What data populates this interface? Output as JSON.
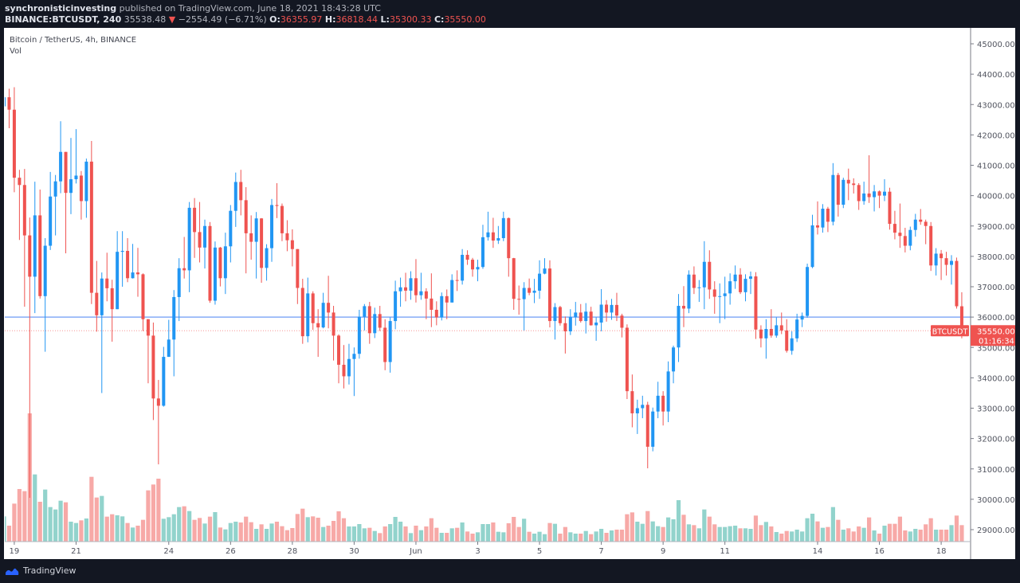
{
  "header": {
    "author": "synchronisticinvesting",
    "published": "published on TradingView.com, June 18, 2021 18:43:28 UTC",
    "symbol": "BINANCE:BTCUSDT, 240",
    "last": "35538.48",
    "change": "−2554.49 (−6.71%)",
    "o_label": "O:",
    "o": "36355.97",
    "h_label": "H:",
    "h": "36818.44",
    "l_label": "L:",
    "l": "35300.33",
    "c_label": "C:",
    "c": "35550.00"
  },
  "legend": {
    "title": "Bitcoin / TetherUS, 4h, BINANCE",
    "vol": "Vol"
  },
  "price_tag": {
    "symbol": "BTCUSDT",
    "price": "35550.00",
    "countdown": "01:16:34"
  },
  "footer": {
    "brand": "TradingView"
  },
  "colors": {
    "up": "#2196f3",
    "down": "#ef5350",
    "vol_up": "#92d3cc",
    "vol_down": "#f7a9a7",
    "hline": "#6e9cf5",
    "bg": "#131722"
  },
  "chart_data": {
    "type": "candlestick",
    "title": "Bitcoin / TetherUS, 4h, BINANCE",
    "ylim": [
      28500,
      45500
    ],
    "yticks": [
      29000,
      30000,
      31000,
      32000,
      33000,
      34000,
      35000,
      36000,
      37000,
      38000,
      39000,
      40000,
      41000,
      42000,
      43000,
      44000,
      45000
    ],
    "ytick_labels": [
      "29000.00",
      "30000.00",
      "31000.00",
      "32000.00",
      "33000.00",
      "34000.00",
      "35000.00",
      "36000.00",
      "37000.00",
      "38000.00",
      "39000.00",
      "40000.00",
      "41000.00",
      "42000.00",
      "43000.00",
      "44000.00",
      "45000.00"
    ],
    "xticks": [
      {
        "i": 2,
        "label": "19"
      },
      {
        "i": 14,
        "label": "21"
      },
      {
        "i": 32,
        "label": "24"
      },
      {
        "i": 44,
        "label": "26"
      },
      {
        "i": 56,
        "label": "28"
      },
      {
        "i": 68,
        "label": "30"
      },
      {
        "i": 80,
        "label": "Jun"
      },
      {
        "i": 92,
        "label": "3"
      },
      {
        "i": 104,
        "label": "5"
      },
      {
        "i": 116,
        "label": "7"
      },
      {
        "i": 128,
        "label": "9"
      },
      {
        "i": 140,
        "label": "11"
      },
      {
        "i": 158,
        "label": "14"
      },
      {
        "i": 170,
        "label": "16"
      },
      {
        "i": 182,
        "label": "18"
      }
    ],
    "horizontal_line": 36000,
    "last_price": 35550.0,
    "ohlc": [
      [
        42940,
        43300,
        42900,
        43240
      ],
      [
        43240,
        43520,
        42220,
        42830
      ],
      [
        42830,
        43570,
        40110,
        40590
      ],
      [
        40590,
        40850,
        38540,
        40350
      ],
      [
        40350,
        40880,
        36340,
        38690
      ],
      [
        38690,
        39280,
        30050,
        37330
      ],
      [
        37330,
        40460,
        36130,
        39350
      ],
      [
        39350,
        40200,
        36610,
        36690
      ],
      [
        36690,
        38600,
        34860,
        38350
      ],
      [
        38350,
        40780,
        38210,
        39970
      ],
      [
        39970,
        40680,
        38690,
        40470
      ],
      [
        40470,
        42450,
        40080,
        41440
      ],
      [
        41440,
        41440,
        38100,
        40090
      ],
      [
        40090,
        41900,
        39390,
        40540
      ],
      [
        40540,
        42190,
        40400,
        40660
      ],
      [
        40660,
        40810,
        39210,
        39820
      ],
      [
        39820,
        41220,
        39270,
        41120
      ],
      [
        41120,
        41800,
        36430,
        36800
      ],
      [
        36800,
        37850,
        35520,
        36060
      ],
      [
        36060,
        37470,
        33500,
        37270
      ],
      [
        37270,
        38120,
        36520,
        36950
      ],
      [
        36950,
        37230,
        35190,
        36260
      ],
      [
        36260,
        38830,
        36260,
        38150
      ],
      [
        38150,
        38830,
        37000,
        38180
      ],
      [
        38180,
        38600,
        37150,
        37280
      ],
      [
        37280,
        38410,
        37270,
        37470
      ],
      [
        37470,
        38280,
        36670,
        37410
      ],
      [
        37410,
        37440,
        35540,
        35930
      ],
      [
        35930,
        35930,
        33820,
        35390
      ],
      [
        35390,
        35820,
        32610,
        33320
      ],
      [
        33320,
        33930,
        31150,
        33080
      ],
      [
        33080,
        35020,
        33050,
        34690
      ],
      [
        34690,
        35910,
        34690,
        35260
      ],
      [
        35260,
        36890,
        34050,
        36660
      ],
      [
        36660,
        37940,
        35870,
        37610
      ],
      [
        37610,
        38640,
        37270,
        37540
      ],
      [
        37540,
        39790,
        36820,
        39600
      ],
      [
        39600,
        39920,
        37950,
        38800
      ],
      [
        38800,
        39790,
        37800,
        38290
      ],
      [
        38290,
        39210,
        37600,
        39000
      ],
      [
        39000,
        39130,
        36470,
        36540
      ],
      [
        36540,
        38490,
        36410,
        38290
      ],
      [
        38290,
        38310,
        37010,
        37280
      ],
      [
        37280,
        38780,
        36760,
        38330
      ],
      [
        38330,
        39690,
        37800,
        39500
      ],
      [
        39500,
        40760,
        38970,
        40450
      ],
      [
        40450,
        40850,
        39350,
        39850
      ],
      [
        39850,
        40280,
        37440,
        38760
      ],
      [
        38760,
        39350,
        37890,
        38480
      ],
      [
        38480,
        39460,
        37270,
        39250
      ],
      [
        39250,
        39260,
        37130,
        37620
      ],
      [
        37620,
        38400,
        37200,
        38270
      ],
      [
        38270,
        39890,
        37820,
        39690
      ],
      [
        39690,
        40410,
        39260,
        39660
      ],
      [
        39660,
        39740,
        38500,
        38760
      ],
      [
        38760,
        39190,
        38170,
        38530
      ],
      [
        38530,
        38890,
        37670,
        38240
      ],
      [
        38240,
        38240,
        36430,
        36960
      ],
      [
        36960,
        37260,
        35120,
        35370
      ],
      [
        35370,
        37300,
        35170,
        36780
      ],
      [
        36780,
        36850,
        35580,
        35800
      ],
      [
        35800,
        36260,
        34690,
        35660
      ],
      [
        35660,
        36800,
        35630,
        36470
      ],
      [
        36470,
        37360,
        35630,
        36150
      ],
      [
        36150,
        36370,
        34570,
        35390
      ],
      [
        35390,
        35430,
        33820,
        34430
      ],
      [
        34430,
        35080,
        33650,
        34050
      ],
      [
        34050,
        35120,
        33780,
        34620
      ],
      [
        34620,
        35000,
        33400,
        34790
      ],
      [
        34790,
        36240,
        34630,
        36010
      ],
      [
        36010,
        36430,
        35560,
        36360
      ],
      [
        36360,
        36500,
        35120,
        35470
      ],
      [
        35470,
        36310,
        35310,
        36100
      ],
      [
        36100,
        36370,
        35540,
        35650
      ],
      [
        35650,
        35930,
        34250,
        34520
      ],
      [
        34520,
        35990,
        34170,
        35870
      ],
      [
        35870,
        37200,
        35600,
        36850
      ],
      [
        36850,
        37300,
        36340,
        36980
      ],
      [
        36980,
        37460,
        36520,
        36870
      ],
      [
        36870,
        37510,
        36570,
        37280
      ],
      [
        37280,
        37910,
        36480,
        36720
      ],
      [
        36720,
        37460,
        36570,
        36850
      ],
      [
        36850,
        36950,
        35930,
        36610
      ],
      [
        36610,
        37440,
        35670,
        36240
      ],
      [
        36240,
        36520,
        35730,
        35990
      ],
      [
        35990,
        36810,
        35890,
        36690
      ],
      [
        36690,
        36910,
        35930,
        36480
      ],
      [
        36480,
        37410,
        36480,
        37220
      ],
      [
        37220,
        37540,
        36860,
        37200
      ],
      [
        37200,
        38240,
        37070,
        38050
      ],
      [
        38050,
        38200,
        37720,
        37890
      ],
      [
        37890,
        37950,
        37330,
        37570
      ],
      [
        37570,
        37890,
        37180,
        37650
      ],
      [
        37650,
        39040,
        37590,
        38630
      ],
      [
        38630,
        39470,
        38520,
        38790
      ],
      [
        38790,
        39270,
        38280,
        38520
      ],
      [
        38520,
        39000,
        38410,
        38600
      ],
      [
        38600,
        39470,
        38500,
        39260
      ],
      [
        39260,
        39280,
        37330,
        37940
      ],
      [
        37940,
        37950,
        36240,
        36600
      ],
      [
        36600,
        37040,
        36080,
        36590
      ],
      [
        36590,
        37150,
        35560,
        36960
      ],
      [
        36960,
        37270,
        36720,
        36800
      ],
      [
        36800,
        37260,
        36460,
        36870
      ],
      [
        36870,
        37870,
        36600,
        37430
      ],
      [
        37430,
        37940,
        37410,
        37600
      ],
      [
        37600,
        37870,
        35660,
        35870
      ],
      [
        35870,
        36460,
        35260,
        36330
      ],
      [
        36330,
        36370,
        35720,
        35800
      ],
      [
        35800,
        36020,
        34800,
        35530
      ],
      [
        35530,
        36260,
        35410,
        36000
      ],
      [
        36000,
        36500,
        35720,
        36150
      ],
      [
        36150,
        36430,
        35820,
        35870
      ],
      [
        35870,
        36460,
        35460,
        36180
      ],
      [
        36180,
        36340,
        35720,
        35730
      ],
      [
        35730,
        35990,
        35220,
        35820
      ],
      [
        35820,
        36920,
        35530,
        36410
      ],
      [
        36410,
        36560,
        35850,
        36150
      ],
      [
        36150,
        36600,
        35910,
        36400
      ],
      [
        36400,
        36800,
        35870,
        36050
      ],
      [
        36050,
        36110,
        35330,
        35650
      ],
      [
        35650,
        35760,
        33300,
        33560
      ],
      [
        33560,
        34110,
        32370,
        32830
      ],
      [
        32830,
        33280,
        32150,
        33000
      ],
      [
        33000,
        33410,
        32670,
        33110
      ],
      [
        33110,
        33210,
        31020,
        31730
      ],
      [
        31730,
        33020,
        31580,
        32890
      ],
      [
        32890,
        33870,
        32670,
        33410
      ],
      [
        33410,
        33560,
        32430,
        32890
      ],
      [
        32890,
        34540,
        32540,
        34210
      ],
      [
        34210,
        35060,
        33820,
        35000
      ],
      [
        35000,
        36760,
        34520,
        36370
      ],
      [
        36370,
        37020,
        35670,
        36280
      ],
      [
        36280,
        37540,
        36130,
        37400
      ],
      [
        37400,
        37670,
        36760,
        36960
      ],
      [
        36960,
        37220,
        36500,
        36980
      ],
      [
        36980,
        38500,
        36260,
        37820
      ],
      [
        37820,
        38200,
        36600,
        36910
      ],
      [
        36910,
        37180,
        36110,
        36670
      ],
      [
        36670,
        37110,
        35800,
        36690
      ],
      [
        36690,
        37330,
        35930,
        36780
      ],
      [
        36780,
        37440,
        36410,
        37180
      ],
      [
        37180,
        37700,
        36930,
        37400
      ],
      [
        37400,
        37610,
        36760,
        36820
      ],
      [
        36820,
        37410,
        36520,
        37260
      ],
      [
        37260,
        37500,
        36760,
        37340
      ],
      [
        37340,
        37480,
        35280,
        35590
      ],
      [
        35590,
        35730,
        35000,
        35300
      ],
      [
        35300,
        35930,
        34630,
        35610
      ],
      [
        35610,
        36260,
        35320,
        35390
      ],
      [
        35390,
        35990,
        35320,
        35730
      ],
      [
        35730,
        36150,
        35440,
        35560
      ],
      [
        35560,
        35930,
        34830,
        34890
      ],
      [
        34890,
        35530,
        34760,
        35300
      ],
      [
        35300,
        36110,
        35180,
        35920
      ],
      [
        35920,
        36150,
        35670,
        36040
      ],
      [
        36040,
        37760,
        35980,
        37650
      ],
      [
        37650,
        39370,
        37610,
        39020
      ],
      [
        39020,
        39810,
        38720,
        38950
      ],
      [
        38950,
        39720,
        38780,
        39570
      ],
      [
        39570,
        39630,
        38800,
        39140
      ],
      [
        39140,
        41070,
        39020,
        40680
      ],
      [
        40680,
        40750,
        39310,
        39700
      ],
      [
        39700,
        40590,
        39590,
        40520
      ],
      [
        40520,
        40890,
        39850,
        40400
      ],
      [
        40400,
        40570,
        40070,
        40350
      ],
      [
        40350,
        40410,
        39530,
        39820
      ],
      [
        39820,
        40460,
        39700,
        40070
      ],
      [
        40070,
        41330,
        39760,
        39950
      ],
      [
        39950,
        40350,
        39480,
        40140
      ],
      [
        40140,
        40170,
        39590,
        40000
      ],
      [
        40000,
        40540,
        39820,
        40130
      ],
      [
        40130,
        40260,
        38880,
        39070
      ],
      [
        39070,
        39500,
        38560,
        38780
      ],
      [
        38780,
        39740,
        38280,
        38670
      ],
      [
        38670,
        38940,
        38130,
        38350
      ],
      [
        38350,
        38980,
        38200,
        38870
      ],
      [
        38870,
        39400,
        38650,
        39210
      ],
      [
        39210,
        39560,
        39040,
        39140
      ],
      [
        39140,
        39210,
        38400,
        39000
      ],
      [
        39000,
        39130,
        37520,
        37700
      ],
      [
        37700,
        38270,
        37370,
        38090
      ],
      [
        38090,
        38210,
        37220,
        37940
      ],
      [
        37940,
        38150,
        37370,
        37720
      ],
      [
        37720,
        38040,
        37070,
        37850
      ],
      [
        37850,
        37960,
        36280,
        36356
      ],
      [
        36355.97,
        36818.44,
        35300.33,
        35550.0
      ]
    ],
    "volume_relative": [
      95,
      60,
      143,
      198,
      190,
      483,
      253,
      150,
      196,
      130,
      121,
      154,
      148,
      75,
      70,
      80,
      87,
      244,
      166,
      172,
      94,
      103,
      99,
      95,
      70,
      53,
      60,
      82,
      193,
      215,
      237,
      86,
      92,
      103,
      130,
      133,
      115,
      82,
      89,
      68,
      94,
      111,
      53,
      46,
      70,
      75,
      72,
      94,
      73,
      48,
      65,
      48,
      68,
      75,
      58,
      43,
      51,
      104,
      124,
      92,
      95,
      90,
      55,
      60,
      78,
      114,
      88,
      57,
      57,
      66,
      50,
      52,
      40,
      32,
      57,
      66,
      93,
      75,
      57,
      32,
      60,
      43,
      57,
      88,
      52,
      33,
      33,
      50,
      52,
      72,
      38,
      30,
      35,
      66,
      66,
      72,
      37,
      35,
      69,
      93,
      55,
      86,
      37,
      30,
      37,
      28,
      70,
      67,
      30,
      55,
      35,
      30,
      30,
      40,
      28,
      38,
      48,
      33,
      42,
      45,
      45,
      103,
      110,
      75,
      67,
      115,
      76,
      58,
      55,
      91,
      84,
      156,
      101,
      65,
      62,
      50,
      121,
      94,
      65,
      55,
      55,
      58,
      60,
      50,
      50,
      48,
      98,
      62,
      74,
      57,
      36,
      30,
      40,
      38,
      45,
      38,
      88,
      105,
      76,
      52,
      55,
      130,
      82,
      45,
      50,
      38,
      57,
      52,
      91,
      42,
      30,
      60,
      67,
      67,
      94,
      42,
      38,
      48,
      45,
      65,
      88,
      45,
      45,
      45,
      62,
      98,
      62
    ]
  }
}
